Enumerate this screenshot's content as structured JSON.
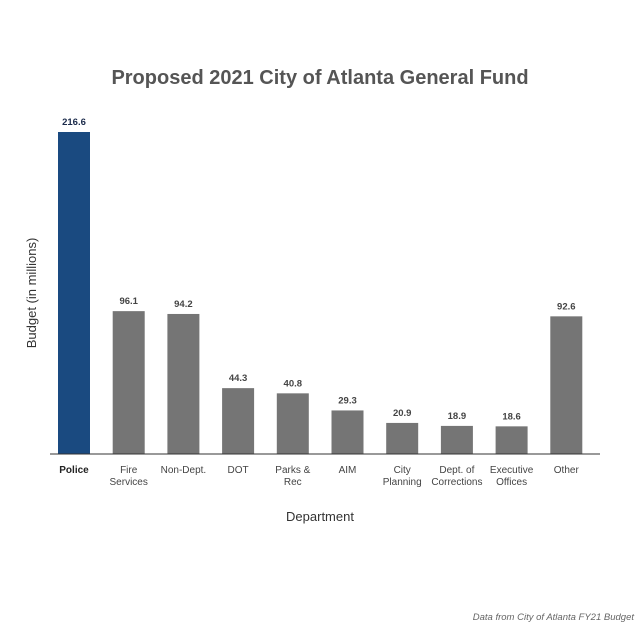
{
  "chart_data": {
    "type": "bar",
    "title": "Proposed 2021 City of Atlanta General Fund",
    "xlabel": "Department",
    "ylabel": "Budget (in millions)",
    "categories": [
      [
        "Police"
      ],
      [
        "Fire",
        "Services"
      ],
      [
        "Non-Dept."
      ],
      [
        "DOT"
      ],
      [
        "Parks &",
        "Rec"
      ],
      [
        "AIM"
      ],
      [
        "City",
        "Planning"
      ],
      [
        "Dept. of",
        "Corrections"
      ],
      [
        "Executive",
        "Offices"
      ],
      [
        "Other"
      ]
    ],
    "values": [
      216.6,
      96.1,
      94.2,
      44.3,
      40.8,
      29.3,
      20.9,
      18.9,
      18.6,
      92.6
    ],
    "value_labels": [
      "216.6",
      "96.1",
      "94.2",
      "44.3",
      "40.8",
      "29.3",
      "20.9",
      "18.9",
      "18.6",
      "92.6"
    ],
    "highlight_index": 0,
    "ylim": [
      0,
      216.6
    ],
    "grid": false,
    "colors": {
      "highlight": "#1a4a80",
      "default": "#757575",
      "axis": "#333333"
    }
  },
  "source_note": "Data from City of Atlanta FY21 Budget"
}
